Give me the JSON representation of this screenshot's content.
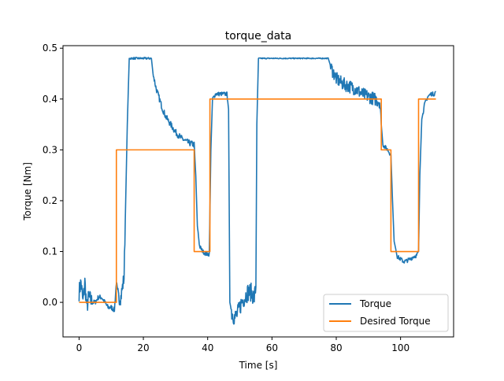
{
  "chart_data": {
    "type": "line",
    "title": "torque_data",
    "xlabel": "Time [s]",
    "ylabel": "Torque [Nm]",
    "xlim": [
      -5,
      116.5
    ],
    "ylim": [
      -0.068,
      0.505
    ],
    "xticks": [
      0,
      20,
      40,
      60,
      80,
      100
    ],
    "yticks": [
      0.0,
      0.1,
      0.2,
      0.3,
      0.4,
      0.5
    ],
    "xtick_labels": [
      "0",
      "20",
      "40",
      "60",
      "80",
      "100"
    ],
    "ytick_labels": [
      "0.0",
      "0.1",
      "0.2",
      "0.3",
      "0.4",
      "0.5"
    ],
    "grid": false,
    "legend": {
      "position": "lower-right"
    },
    "series": [
      {
        "name": "Torque",
        "color": "#1f77b4",
        "style": "noisy",
        "points": [
          [
            0.0,
            0.02
          ],
          [
            0.6,
            0.04
          ],
          [
            1.2,
            0.0
          ],
          [
            1.8,
            0.04
          ],
          [
            2.4,
            -0.01
          ],
          [
            3.0,
            0.01
          ],
          [
            4.0,
            0.0
          ],
          [
            5.0,
            0.0
          ],
          [
            6.0,
            0.01
          ],
          [
            7.0,
            0.01
          ],
          [
            8.0,
            0.0
          ],
          [
            9.0,
            -0.01
          ],
          [
            10.0,
            -0.01
          ],
          [
            11.0,
            -0.015
          ],
          [
            11.6,
            0.04
          ],
          [
            12.2,
            0.01
          ],
          [
            13.0,
            0.01
          ],
          [
            14.0,
            0.05
          ],
          [
            15.0,
            0.35
          ],
          [
            15.6,
            0.48
          ],
          [
            17.0,
            0.48
          ],
          [
            20.0,
            0.48
          ],
          [
            22.5,
            0.48
          ],
          [
            23.0,
            0.45
          ],
          [
            24.0,
            0.42
          ],
          [
            25.0,
            0.4
          ],
          [
            26.0,
            0.38
          ],
          [
            27.0,
            0.365
          ],
          [
            28.0,
            0.355
          ],
          [
            29.0,
            0.345
          ],
          [
            30.0,
            0.335
          ],
          [
            31.0,
            0.328
          ],
          [
            32.0,
            0.322
          ],
          [
            33.0,
            0.318
          ],
          [
            34.0,
            0.314
          ],
          [
            35.0,
            0.312
          ],
          [
            35.8,
            0.31
          ],
          [
            36.3,
            0.25
          ],
          [
            36.8,
            0.15
          ],
          [
            37.5,
            0.11
          ],
          [
            38.5,
            0.1
          ],
          [
            39.5,
            0.095
          ],
          [
            40.5,
            0.095
          ],
          [
            41.0,
            0.3
          ],
          [
            41.5,
            0.4
          ],
          [
            42.5,
            0.41
          ],
          [
            44.0,
            0.41
          ],
          [
            46.0,
            0.41
          ],
          [
            46.5,
            0.38
          ],
          [
            46.9,
            0.0
          ],
          [
            47.5,
            -0.02
          ],
          [
            48.5,
            -0.03
          ],
          [
            49.5,
            -0.02
          ],
          [
            50.5,
            0.0
          ],
          [
            51.5,
            0.01
          ],
          [
            52.5,
            0.02
          ],
          [
            53.5,
            0.02
          ],
          [
            54.5,
            0.01
          ],
          [
            55.0,
            0.03
          ],
          [
            55.3,
            0.35
          ],
          [
            55.8,
            0.48
          ],
          [
            60.0,
            0.48
          ],
          [
            65.0,
            0.48
          ],
          [
            70.0,
            0.48
          ],
          [
            75.0,
            0.48
          ],
          [
            77.5,
            0.48
          ],
          [
            78.5,
            0.46
          ],
          [
            80.0,
            0.44
          ],
          [
            82.0,
            0.43
          ],
          [
            84.0,
            0.425
          ],
          [
            86.0,
            0.42
          ],
          [
            88.0,
            0.41
          ],
          [
            90.0,
            0.405
          ],
          [
            92.0,
            0.4
          ],
          [
            93.5,
            0.395
          ],
          [
            94.0,
            0.35
          ],
          [
            94.5,
            0.31
          ],
          [
            96.0,
            0.3
          ],
          [
            97.0,
            0.29
          ],
          [
            97.5,
            0.2
          ],
          [
            98.0,
            0.12
          ],
          [
            99.0,
            0.09
          ],
          [
            100.0,
            0.085
          ],
          [
            101.0,
            0.08
          ],
          [
            102.0,
            0.082
          ],
          [
            103.0,
            0.085
          ],
          [
            104.0,
            0.09
          ],
          [
            105.0,
            0.092
          ],
          [
            105.6,
            0.1
          ],
          [
            106.0,
            0.25
          ],
          [
            106.6,
            0.36
          ],
          [
            107.5,
            0.39
          ],
          [
            108.5,
            0.405
          ],
          [
            109.5,
            0.41
          ],
          [
            110.5,
            0.41
          ],
          [
            111.0,
            0.415
          ]
        ]
      },
      {
        "name": "Desired Torque",
        "color": "#ff7f0e",
        "style": "step",
        "points": [
          [
            0.0,
            0.0
          ],
          [
            11.6,
            0.0
          ],
          [
            11.6,
            0.3
          ],
          [
            35.8,
            0.3
          ],
          [
            35.8,
            0.1
          ],
          [
            40.7,
            0.1
          ],
          [
            40.7,
            0.4
          ],
          [
            94.0,
            0.4
          ],
          [
            94.0,
            0.3
          ],
          [
            97.0,
            0.3
          ],
          [
            97.0,
            0.1
          ],
          [
            105.6,
            0.1
          ],
          [
            105.6,
            0.4
          ],
          [
            111.0,
            0.4
          ]
        ]
      }
    ]
  }
}
